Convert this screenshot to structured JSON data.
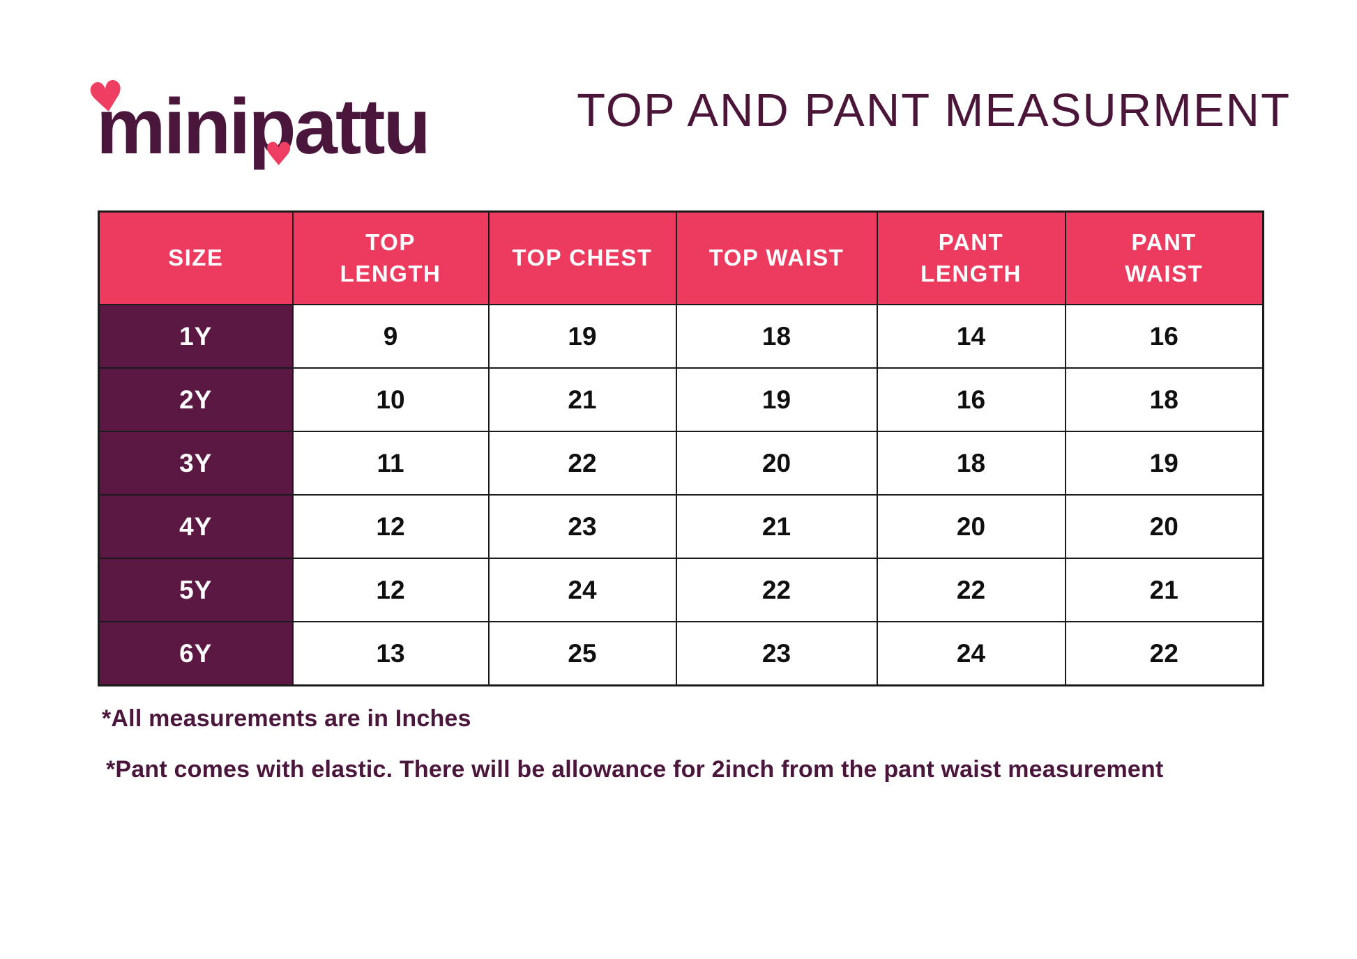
{
  "brand": {
    "logo_part1": "mini",
    "logo_p": "p",
    "logo_part3": "attu",
    "logo_color": "#4b163b",
    "heart_color": "#ee3f63",
    "heart_glyph": "♥"
  },
  "header": {
    "title": "TOP AND PANT MEASURMENT",
    "title_color": "#4a1538"
  },
  "colors": {
    "table_header_bg": "#ed3a5f",
    "table_header_text": "#ffffff",
    "size_column_bg": "#5b1843",
    "size_column_text": "#ffffff",
    "data_cell_bg": "#ffffff",
    "data_cell_text": "#0f0f0f",
    "border": "#1a1a1a"
  },
  "chart_data": {
    "type": "table",
    "title": "TOP AND PANT MEASURMENT",
    "columns": [
      "SIZE",
      "TOP LENGTH",
      "TOP CHEST",
      "TOP WAIST",
      "PANT LENGTH",
      "PANT WAIST"
    ],
    "header_lines": [
      [
        "SIZE"
      ],
      [
        "TOP",
        "LENGTH"
      ],
      [
        "TOP CHEST"
      ],
      [
        "TOP WAIST"
      ],
      [
        "PANT",
        "LENGTH"
      ],
      [
        "PANT",
        "WAIST"
      ]
    ],
    "rows": [
      [
        "1Y",
        "9",
        "19",
        "18",
        "14",
        "16"
      ],
      [
        "2Y",
        "10",
        "21",
        "19",
        "16",
        "18"
      ],
      [
        "3Y",
        "11",
        "22",
        "20",
        "18",
        "19"
      ],
      [
        "4Y",
        "12",
        "23",
        "21",
        "20",
        "20"
      ],
      [
        "5Y",
        "12",
        "24",
        "22",
        "22",
        "21"
      ],
      [
        "6Y",
        "13",
        "25",
        "23",
        "24",
        "22"
      ]
    ],
    "units": "Inches"
  },
  "footnotes": [
    "*All measurements are in Inches",
    "*Pant comes with elastic. There will be allowance for 2inch from the pant waist measurement"
  ]
}
